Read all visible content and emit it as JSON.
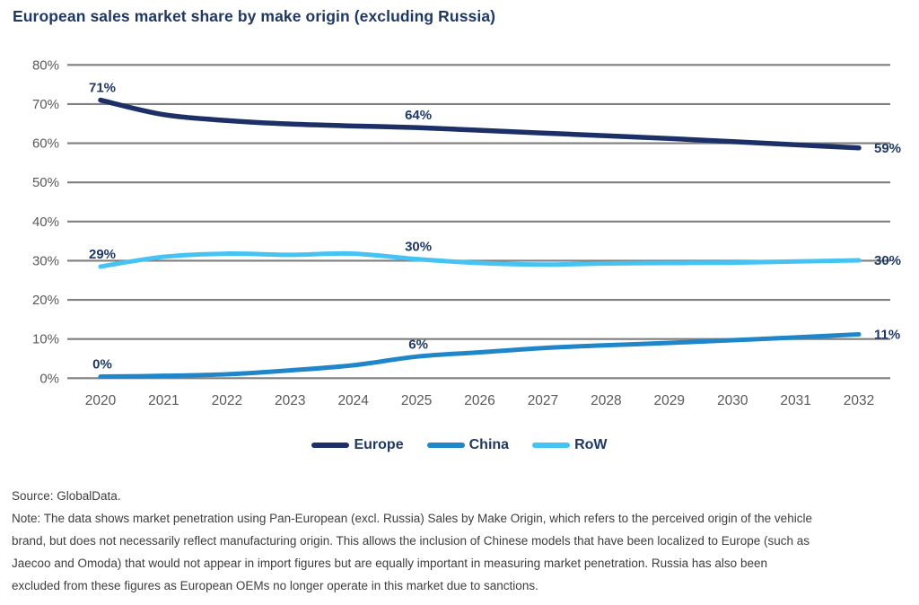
{
  "title": "European sales market share by make origin (excluding Russia)",
  "colors": {
    "title_navy": "#1f3864",
    "axis_label_gray": "#595959",
    "gridline_gray": "#7f7f7f",
    "note_text": "#3d3d3d",
    "europe_line": "#1c2f66",
    "china_line": "#1f86c9",
    "row_line": "#45c3f2"
  },
  "chart_data": {
    "type": "line",
    "title": "European sales market share by make origin (excluding Russia)",
    "x": [
      2020,
      2021,
      2022,
      2023,
      2024,
      2025,
      2026,
      2027,
      2028,
      2029,
      2030,
      2031,
      2032
    ],
    "series": [
      {
        "name": "Europe",
        "color": "#1c2f66",
        "values": [
          71,
          67.3,
          65.8,
          64.9,
          64.4,
          64,
          63.3,
          62.6,
          61.9,
          61.2,
          60.4,
          59.6,
          58.8
        ]
      },
      {
        "name": "China",
        "color": "#1f86c9",
        "values": [
          0.4,
          0.6,
          1.0,
          2.0,
          3.3,
          5.5,
          6.6,
          7.7,
          8.4,
          9.0,
          9.7,
          10.4,
          11.2
        ]
      },
      {
        "name": "RoW",
        "color": "#45c3f2",
        "values": [
          28.5,
          31.0,
          31.8,
          31.5,
          31.8,
          30.4,
          29.4,
          29.0,
          29.3,
          29.4,
          29.5,
          29.8,
          30.1
        ]
      }
    ],
    "point_labels": [
      {
        "text": "71%",
        "series": "Europe",
        "year": 2020,
        "placement": "above"
      },
      {
        "text": "64%",
        "series": "Europe",
        "year": 2025,
        "placement": "above"
      },
      {
        "text": "59%",
        "series": "Europe",
        "year": 2032,
        "placement": "right"
      },
      {
        "text": "29%",
        "series": "RoW",
        "year": 2020,
        "placement": "above"
      },
      {
        "text": "30%",
        "series": "RoW",
        "year": 2025,
        "placement": "above"
      },
      {
        "text": "30%",
        "series": "RoW",
        "year": 2032,
        "placement": "right"
      },
      {
        "text": "0%",
        "series": "China",
        "year": 2020,
        "placement": "above"
      },
      {
        "text": "6%",
        "series": "China",
        "year": 2025,
        "placement": "above"
      },
      {
        "text": "11%",
        "series": "China",
        "year": 2032,
        "placement": "right"
      }
    ],
    "y_ticks": [
      0,
      10,
      20,
      30,
      40,
      50,
      60,
      70,
      80
    ],
    "y_tick_suffix": "%",
    "ylim": [
      0,
      80
    ],
    "grid": true,
    "legend_position": "bottom"
  },
  "legend": {
    "items": [
      {
        "label": "Europe",
        "color": "#1c2f66"
      },
      {
        "label": "China",
        "color": "#1f86c9"
      },
      {
        "label": "RoW",
        "color": "#45c3f2"
      }
    ]
  },
  "footer": {
    "source": "Source: GlobalData.",
    "note_lines": [
      "Note: The data shows market penetration using Pan-European (excl. Russia) Sales by Make Origin, which refers to the perceived origin of the vehicle",
      "brand, but does not necessarily reflect manufacturing origin. This allows the inclusion of Chinese models that have been localized to Europe (such as",
      "Jaecoo and Omoda) that would not appear in import figures but are equally important in measuring market penetration. Russia has also been",
      "excluded from these figures as European OEMs no longer operate in this market due to sanctions."
    ]
  }
}
